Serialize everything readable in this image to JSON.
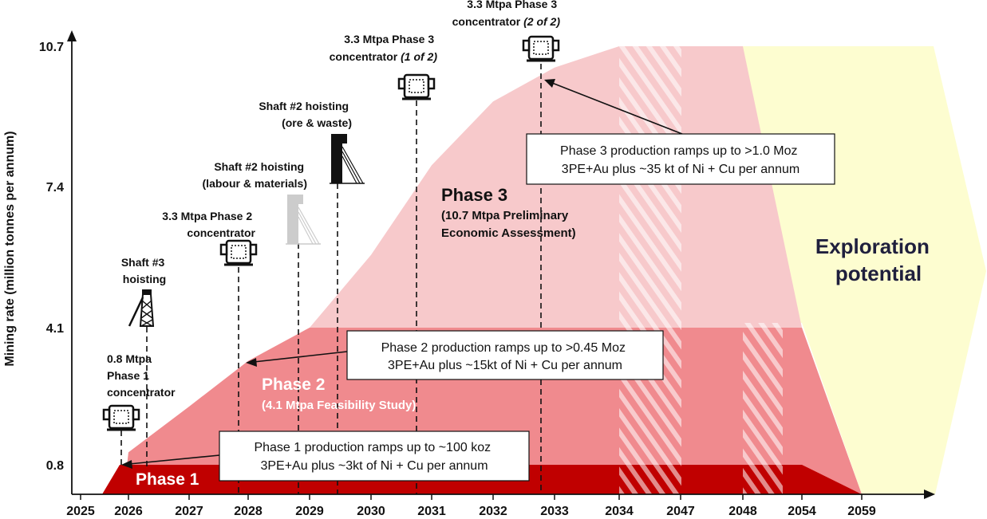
{
  "chart_data": {
    "type": "area",
    "title": "",
    "ylabel": "Mining rate (million tonnes per annum)",
    "xlabel": "",
    "y_ticks": [
      0.8,
      4.1,
      7.4,
      10.7
    ],
    "x_ticks": [
      "2025",
      "2026",
      "2027",
      "2028",
      "2029",
      "2030",
      "2031",
      "2032",
      "2033",
      "2034",
      "2047",
      "2048",
      "2054",
      "2059"
    ],
    "series": [
      {
        "name": "Phase 1",
        "color": "#c00000",
        "values": [
          0,
          0.8,
          0.8,
          0.8,
          0.8,
          0.8,
          0.8,
          0.8,
          0.8,
          0.8,
          0.8,
          0.8,
          0.8,
          0
        ]
      },
      {
        "name": "Phase 2",
        "subtitle": "(4.1 Mtpa Feasibility Study)",
        "color": "#f08a8e",
        "values": [
          0,
          1.1,
          2.2,
          3.3,
          4.1,
          4.1,
          4.1,
          4.1,
          4.1,
          4.1,
          4.1,
          4.1,
          4.1,
          0
        ]
      },
      {
        "name": "Phase 3",
        "subtitle": "(10.7 Mtpa Preliminary Economic Assessment)",
        "color": "#f7c9cb",
        "values": [
          0,
          1.1,
          2.2,
          3.3,
          4.1,
          5.8,
          7.9,
          9.4,
          10.2,
          10.7,
          10.7,
          10.7,
          4.1,
          0
        ]
      }
    ],
    "exploration_label": [
      "Exploration",
      "potential"
    ],
    "milestones": [
      {
        "label_lines": [
          "0.8 Mtpa",
          "Phase 1",
          "concentrator"
        ],
        "icon": "concentrator-icon"
      },
      {
        "label_lines": [
          "Shaft #3",
          "hoisting"
        ],
        "icon": "headframe-icon"
      },
      {
        "label_lines": [
          "3.3 Mtpa Phase 2",
          "concentrator"
        ],
        "icon": "concentrator-icon"
      },
      {
        "label_lines": [
          "Shaft #2 hoisting",
          "(labour & materials)"
        ],
        "icon": "shaft-grey-icon"
      },
      {
        "label_lines": [
          "Shaft #2 hoisting",
          "(ore & waste)"
        ],
        "icon": "shaft-black-icon"
      },
      {
        "label_lines": [
          "3.3 Mtpa Phase 3",
          "concentrator"
        ],
        "label_italic": "(1 of 2)",
        "icon": "concentrator-icon"
      },
      {
        "label_lines": [
          "3.3 Mtpa Phase 3",
          "concentrator"
        ],
        "label_italic": "(2 of 2)",
        "icon": "concentrator-icon"
      }
    ],
    "callouts": [
      {
        "lines": [
          "Phase 1 production ramps up to ~100 koz",
          "3PE+Au plus ~3kt of Ni + Cu per annum"
        ]
      },
      {
        "lines": [
          "Phase 2 production ramps up to >0.45 Moz",
          "3PE+Au plus ~15kt of Ni + Cu per annum"
        ]
      },
      {
        "lines": [
          "Phase 3 production ramps up to >1.0 Moz",
          "3PE+Au plus ~35 kt of Ni + Cu per annum"
        ]
      }
    ]
  }
}
